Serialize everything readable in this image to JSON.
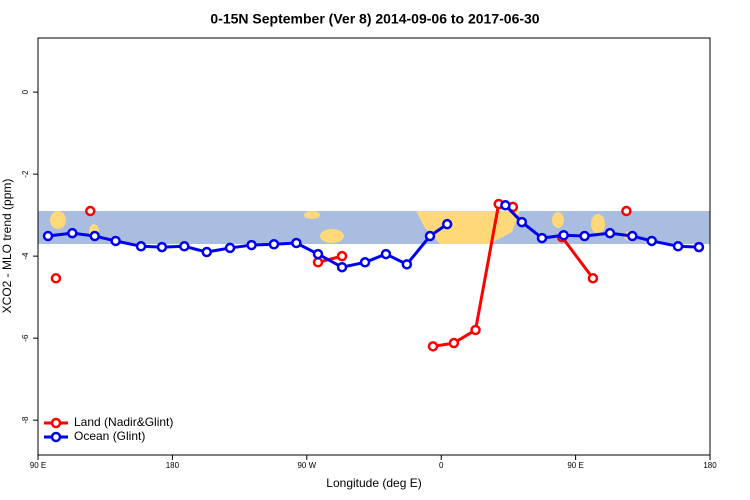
{
  "chart_data": {
    "type": "line",
    "title": "0-15N September (Ver 8)   2014-09-06 to 2017-06-30",
    "x_label": "Longitude (deg E)",
    "y_label": "XCO2 - MLO trend (ppm)",
    "xlim": [
      90,
      540
    ],
    "xticks": [
      {
        "value": 90,
        "label": "90 E"
      },
      {
        "value": 180,
        "label": "180"
      },
      {
        "value": 270,
        "label": "90 W"
      },
      {
        "value": 360,
        "label": "0"
      },
      {
        "value": 450,
        "label": "90 E"
      },
      {
        "value": 540,
        "label": "180"
      }
    ],
    "ylim": [
      -8.85,
      1.32
    ],
    "yticks": [
      0,
      -2,
      -4,
      -6,
      -8
    ],
    "legend": "bottom-left",
    "series": [
      {
        "name": "Land (Nadir&Glint)",
        "color": "#ff0000",
        "x": [
          102,
          null,
          125,
          null,
          277.5,
          293.6,
          null,
          354.5,
          368.5,
          383,
          398.5,
          408,
          null,
          441,
          461.6,
          null,
          484
        ],
        "values": [
          -4.54,
          null,
          -2.9,
          null,
          -4.15,
          -4.0,
          null,
          -6.2,
          -6.12,
          -5.8,
          -2.73,
          -2.8,
          null,
          -3.54,
          -4.54,
          null,
          -2.9
        ]
      },
      {
        "name": "Ocean (Glint)",
        "color": "#0000ee",
        "x": [
          96.7,
          113,
          128,
          142,
          159,
          173,
          188,
          203,
          218.6,
          233,
          248,
          263,
          277.5,
          293.6,
          309,
          323,
          337,
          352.5,
          364,
          null,
          403,
          414,
          427.5,
          442,
          456,
          473,
          488,
          501,
          518.6,
          532.6
        ],
        "values": [
          -3.51,
          -3.44,
          -3.51,
          -3.63,
          -3.76,
          -3.78,
          -3.76,
          -3.9,
          -3.8,
          -3.73,
          -3.71,
          -3.68,
          -3.95,
          -4.27,
          -4.15,
          -3.95,
          -4.2,
          -3.51,
          -3.22,
          null,
          -2.76,
          -3.17,
          -3.56,
          -3.49,
          -3.51,
          -3.44,
          -3.51,
          -3.63,
          -3.76,
          -3.78
        ]
      }
    ]
  }
}
